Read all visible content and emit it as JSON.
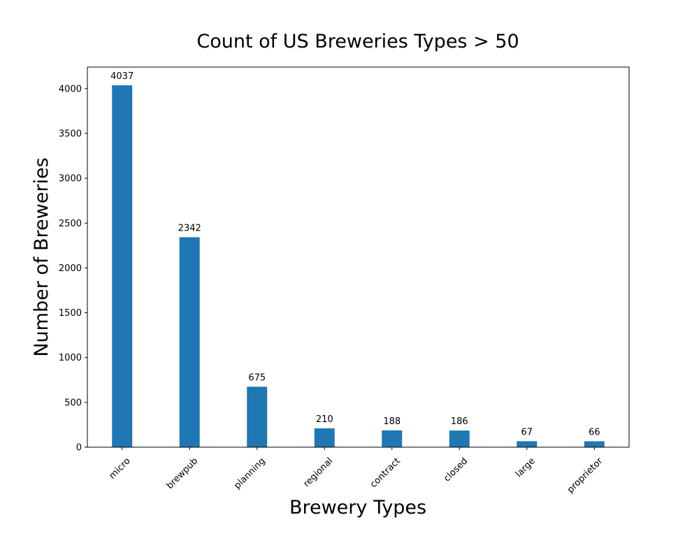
{
  "chart_data": {
    "type": "bar",
    "title": "Count of US Breweries Types > 50",
    "xlabel": "Brewery Types",
    "ylabel": "Number of Breweries",
    "categories": [
      "micro",
      "brewpub",
      "planning",
      "regional",
      "contract",
      "closed",
      "large",
      "proprietor"
    ],
    "values": [
      4037,
      2342,
      675,
      210,
      188,
      186,
      67,
      66
    ],
    "data_labels": [
      "4037",
      "2342",
      "675",
      "210",
      "188",
      "186",
      "67",
      "66"
    ],
    "ylim": [
      0,
      4240
    ],
    "yticks": [
      0,
      500,
      1000,
      1500,
      2000,
      2500,
      3000,
      3500,
      4000
    ],
    "ytick_labels": [
      "0",
      "500",
      "1000",
      "1500",
      "2000",
      "2500",
      "3000",
      "3500",
      "4000"
    ],
    "x_tick_rotation_deg": 45,
    "grid": false,
    "legend": "none",
    "bar_color": "#1f77b4"
  }
}
